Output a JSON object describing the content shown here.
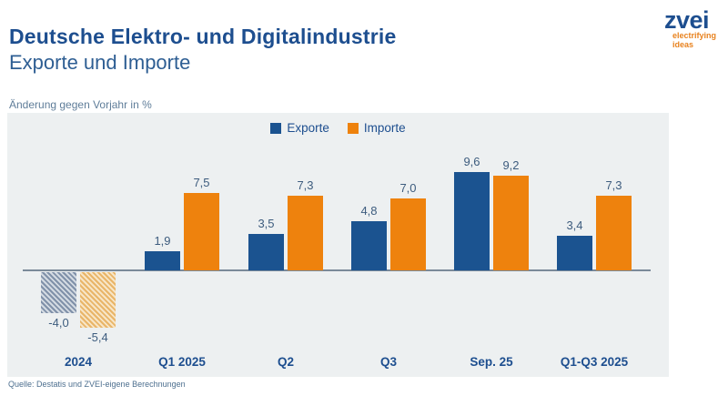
{
  "header": {
    "title": "Deutsche Elektro- und Digitalindustrie",
    "subtitle": "Exporte und Importe"
  },
  "logo": {
    "name": "zvei",
    "tagline_line1": "electrifying",
    "tagline_line2": "ideas"
  },
  "axis_note": "Änderung gegen Vorjahr in %",
  "source": "Quelle: Destatis und ZVEI-eigene Berechnungen",
  "colors": {
    "export_bar": "#1b5390",
    "import_bar": "#ee820d",
    "navy_text": "#1d4e8f",
    "panel_bg": "#edf0f1",
    "logo_orange": "#e8821e"
  },
  "chart_data": {
    "type": "bar",
    "title": "Deutsche Elektro- und Digitalindustrie – Exporte und Importe",
    "ylabel": "Änderung gegen Vorjahr in %",
    "xlabel": "",
    "categories": [
      "2024",
      "Q1 2025",
      "Q2",
      "Q3",
      "Sep. 25",
      "Q1-Q3 2025"
    ],
    "series": [
      {
        "name": "Exporte",
        "color": "#1b5390",
        "values": [
          -4.0,
          1.9,
          3.5,
          4.8,
          9.6,
          3.4
        ],
        "labels": [
          "-4,0",
          "1,9",
          "3,5",
          "4,8",
          "9,6",
          "3,4"
        ]
      },
      {
        "name": "Importe",
        "color": "#ee820d",
        "values": [
          -5.4,
          7.5,
          7.3,
          7.0,
          9.2,
          7.3
        ],
        "labels": [
          "-5,4",
          "7,5",
          "7,3",
          "7,0",
          "9,2",
          "7,3"
        ]
      }
    ],
    "hatched_category_indexes": [
      0
    ],
    "legend_position": "top-center",
    "grid": false,
    "ylim": [
      -6.5,
      11
    ]
  }
}
